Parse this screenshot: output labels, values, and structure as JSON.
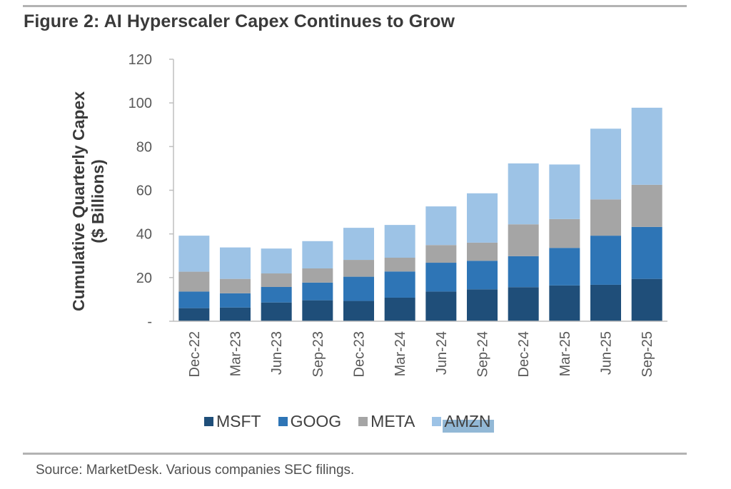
{
  "figure": {
    "title": "Figure 2: AI Hyperscaler Capex Continues to Grow",
    "source": "Source: MarketDesk. Various companies SEC filings."
  },
  "colors": {
    "MSFT": "#1f4e79",
    "GOOG": "#2e75b6",
    "META": "#a5a5a5",
    "AMZN": "#9dc3e6",
    "axis": "#bfbfbf",
    "selection_highlight": "#6ea0c8"
  },
  "chart_data": {
    "type": "bar",
    "stacked": true,
    "title": "Figure 2: AI Hyperscaler Capex Continues to Grow",
    "xlabel": "",
    "ylabel": "Cumulative Quarterly Capex ($ Billions)",
    "ylabel_lines": [
      "Cumulative Quarterly Capex",
      "($ Billions)"
    ],
    "ylim": [
      0,
      120
    ],
    "yticks": [
      0,
      20,
      40,
      60,
      80,
      100,
      120
    ],
    "ytick_labels": [
      "-",
      "20",
      "40",
      "60",
      "80",
      "100",
      "120"
    ],
    "grid": false,
    "legend_position": "bottom",
    "categories": [
      "Dec-22",
      "Mar-23",
      "Jun-23",
      "Sep-23",
      "Dec-23",
      "Mar-24",
      "Jun-24",
      "Sep-24",
      "Dec-24",
      "Mar-25",
      "Jun-25",
      "Sep-25"
    ],
    "series": [
      {
        "name": "MSFT",
        "values": [
          6.0,
          6.3,
          8.6,
          9.6,
          9.3,
          10.8,
          13.6,
          14.6,
          15.6,
          16.4,
          16.7,
          19.4
        ]
      },
      {
        "name": "GOOG",
        "values": [
          7.6,
          6.5,
          7.1,
          8.1,
          11.1,
          12.0,
          13.2,
          13.1,
          14.2,
          17.2,
          22.5,
          23.8
        ]
      },
      {
        "name": "META",
        "values": [
          9.1,
          6.6,
          6.2,
          6.5,
          7.7,
          6.3,
          8.1,
          8.3,
          14.6,
          13.2,
          16.6,
          19.3
        ]
      },
      {
        "name": "AMZN",
        "values": [
          16.5,
          14.4,
          11.4,
          12.5,
          14.7,
          15.0,
          17.7,
          22.6,
          27.9,
          25.0,
          32.4,
          35.3
        ]
      }
    ]
  },
  "legend": {
    "items": [
      {
        "label": "MSFT"
      },
      {
        "label": "GOOG"
      },
      {
        "label": "META"
      },
      {
        "label": "AMZN",
        "highlighted": true
      }
    ]
  }
}
